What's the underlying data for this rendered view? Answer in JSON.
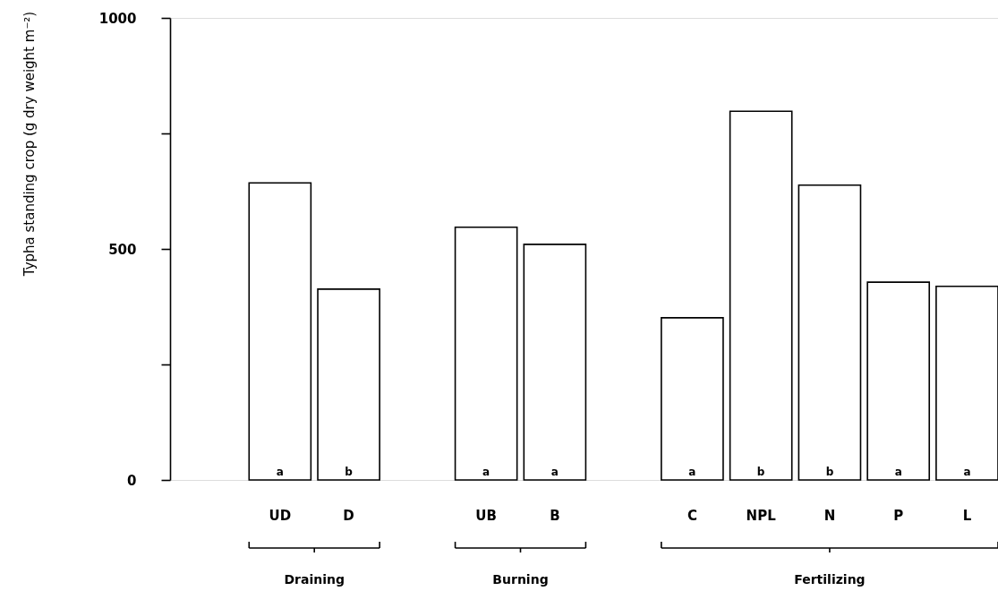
{
  "chart_data": {
    "type": "bar",
    "ylabel": "Typha standing crop (g dry weight m⁻²)",
    "categories": [
      "UD",
      "D",
      "UB",
      "B",
      "C",
      "NPL",
      "N",
      "P",
      "L"
    ],
    "values": [
      643,
      413,
      547,
      510,
      351,
      798,
      638,
      428,
      419
    ],
    "color": "#ffffff",
    "ylim": [
      0,
      1000
    ],
    "yticks": [
      0,
      {
        "value": 250,
        "label": null
      },
      500,
      {
        "value": 750,
        "label": null
      },
      1000
    ],
    "grid": false,
    "annotations": [
      "a",
      "b",
      "a",
      "a",
      "a",
      "b",
      "b",
      "a",
      "a",
      "Draining",
      "Burning",
      "Fertilizing"
    ]
  }
}
